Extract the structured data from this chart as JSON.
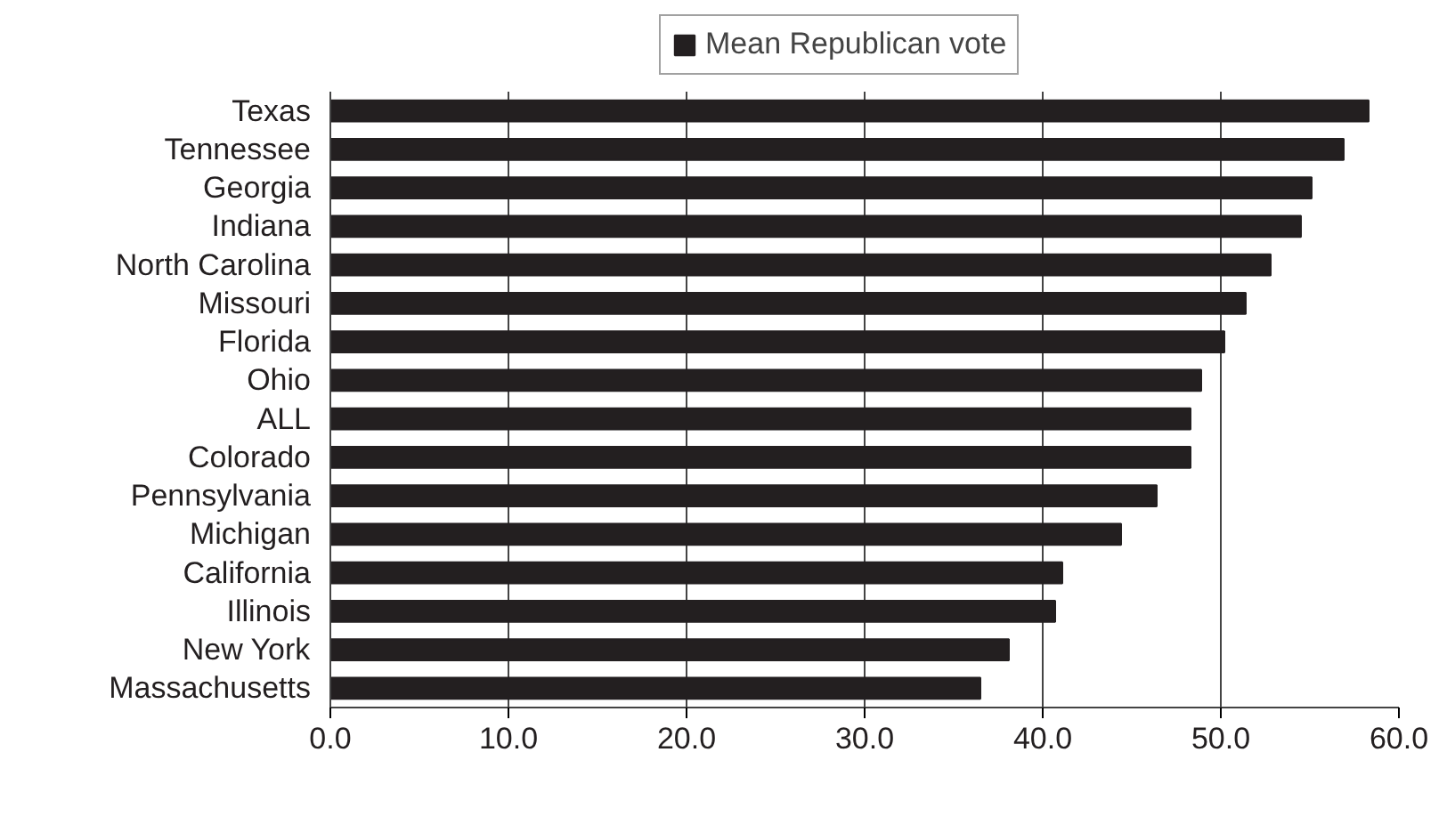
{
  "chart_data": {
    "type": "bar",
    "orientation": "horizontal",
    "categories": [
      "Texas",
      "Tennessee",
      "Georgia",
      "Indiana",
      "North Carolina",
      "Missouri",
      "Florida",
      "Ohio",
      "ALL",
      "Colorado",
      "Pennsylvania",
      "Michigan",
      "California",
      "Illinois",
      "New York",
      "Massachusetts"
    ],
    "series": [
      {
        "name": "Mean Republican vote",
        "color": "#231f20",
        "values": [
          58.3,
          56.9,
          55.1,
          54.5,
          52.8,
          51.4,
          50.2,
          48.9,
          48.3,
          48.3,
          46.4,
          44.4,
          41.1,
          40.7,
          38.1,
          36.5
        ]
      }
    ],
    "xlim": [
      0,
      60
    ],
    "xticks": [
      {
        "value": 0,
        "label": "0.0"
      },
      {
        "value": 10,
        "label": "10.0"
      },
      {
        "value": 20,
        "label": "20.0"
      },
      {
        "value": 30,
        "label": "30.0"
      },
      {
        "value": 40,
        "label": "40.0"
      },
      {
        "value": 50,
        "label": "50.0"
      },
      {
        "value": 60,
        "label": "60.0"
      }
    ],
    "grid": "x",
    "legend": "top"
  }
}
